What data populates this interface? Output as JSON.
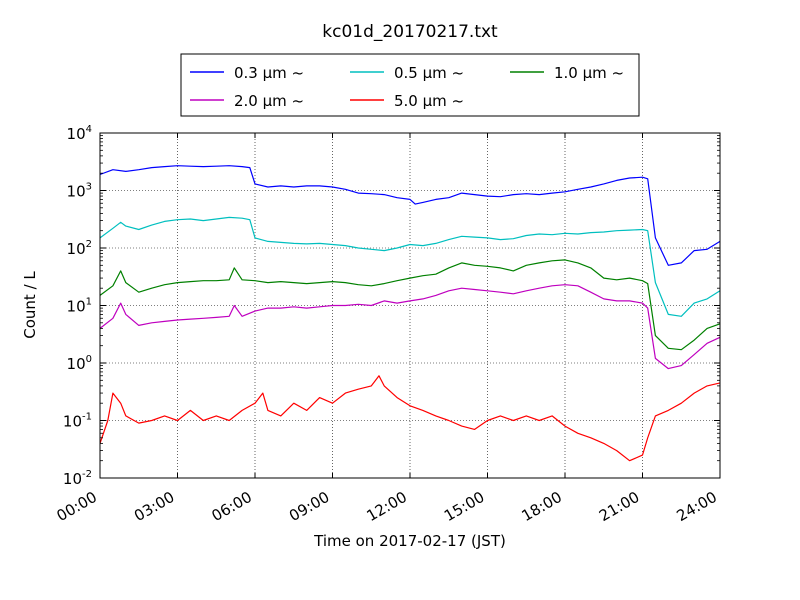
{
  "chart_data": {
    "type": "line",
    "title": "kc01d_20170217.txt",
    "xlabel": "Time on 2017-02-17 (JST)",
    "ylabel": "Count / L",
    "x_ticks": [
      "00:00",
      "03:00",
      "06:00",
      "09:00",
      "12:00",
      "15:00",
      "18:00",
      "21:00",
      "24:00"
    ],
    "y_ticks": [
      {
        "base": "10",
        "exp": "-2"
      },
      {
        "base": "10",
        "exp": "-1"
      },
      {
        "base": "10",
        "exp": "0"
      },
      {
        "base": "10",
        "exp": "1"
      },
      {
        "base": "10",
        "exp": "2"
      },
      {
        "base": "10",
        "exp": "3"
      },
      {
        "base": "10",
        "exp": "4"
      }
    ],
    "xlim_hours": [
      0,
      24
    ],
    "ylim": [
      0.01,
      10000
    ],
    "yscale": "log",
    "grid": true,
    "legend_position": "top-center (outside plot)",
    "series": [
      {
        "name": "0.3 μm ~",
        "color": "#0000ff",
        "points": [
          [
            0,
            1900
          ],
          [
            0.5,
            2300
          ],
          [
            1,
            2150
          ],
          [
            1.5,
            2300
          ],
          [
            2,
            2500
          ],
          [
            2.5,
            2600
          ],
          [
            3,
            2700
          ],
          [
            3.5,
            2650
          ],
          [
            4,
            2600
          ],
          [
            4.5,
            2650
          ],
          [
            5,
            2700
          ],
          [
            5.5,
            2600
          ],
          [
            5.8,
            2500
          ],
          [
            6.0,
            1300
          ],
          [
            6.5,
            1150
          ],
          [
            7,
            1200
          ],
          [
            7.5,
            1150
          ],
          [
            8,
            1200
          ],
          [
            8.5,
            1200
          ],
          [
            9,
            1150
          ],
          [
            9.5,
            1050
          ],
          [
            10,
            900
          ],
          [
            10.5,
            880
          ],
          [
            11,
            850
          ],
          [
            11.5,
            750
          ],
          [
            12,
            700
          ],
          [
            12.2,
            580
          ],
          [
            12.5,
            620
          ],
          [
            13,
            700
          ],
          [
            13.5,
            750
          ],
          [
            14,
            900
          ],
          [
            14.5,
            850
          ],
          [
            15,
            800
          ],
          [
            15.5,
            780
          ],
          [
            16,
            850
          ],
          [
            16.5,
            880
          ],
          [
            17,
            850
          ],
          [
            17.5,
            900
          ],
          [
            18,
            950
          ],
          [
            18.5,
            1050
          ],
          [
            19,
            1150
          ],
          [
            19.5,
            1300
          ],
          [
            20,
            1500
          ],
          [
            20.5,
            1650
          ],
          [
            21,
            1700
          ],
          [
            21.2,
            1600
          ],
          [
            21.5,
            150
          ],
          [
            22,
            50
          ],
          [
            22.5,
            55
          ],
          [
            23,
            90
          ],
          [
            23.5,
            95
          ],
          [
            24,
            130
          ]
        ]
      },
      {
        "name": "0.5 μm ~",
        "color": "#00bfbf",
        "points": [
          [
            0,
            150
          ],
          [
            0.5,
            220
          ],
          [
            0.8,
            280
          ],
          [
            1,
            240
          ],
          [
            1.5,
            210
          ],
          [
            2,
            250
          ],
          [
            2.5,
            290
          ],
          [
            3,
            310
          ],
          [
            3.5,
            320
          ],
          [
            4,
            300
          ],
          [
            4.5,
            320
          ],
          [
            5,
            340
          ],
          [
            5.5,
            330
          ],
          [
            5.8,
            310
          ],
          [
            6.0,
            150
          ],
          [
            6.5,
            130
          ],
          [
            7,
            125
          ],
          [
            7.5,
            120
          ],
          [
            8,
            118
          ],
          [
            8.5,
            120
          ],
          [
            9,
            115
          ],
          [
            9.5,
            110
          ],
          [
            10,
            100
          ],
          [
            10.5,
            95
          ],
          [
            11,
            90
          ],
          [
            11.5,
            100
          ],
          [
            12,
            115
          ],
          [
            12.5,
            110
          ],
          [
            13,
            120
          ],
          [
            13.5,
            140
          ],
          [
            14,
            160
          ],
          [
            14.5,
            155
          ],
          [
            15,
            150
          ],
          [
            15.5,
            140
          ],
          [
            16,
            145
          ],
          [
            16.5,
            165
          ],
          [
            17,
            175
          ],
          [
            17.5,
            170
          ],
          [
            18,
            180
          ],
          [
            18.5,
            175
          ],
          [
            19,
            185
          ],
          [
            19.5,
            190
          ],
          [
            20,
            200
          ],
          [
            20.5,
            205
          ],
          [
            21,
            210
          ],
          [
            21.2,
            200
          ],
          [
            21.5,
            25
          ],
          [
            22,
            7
          ],
          [
            22.5,
            6.5
          ],
          [
            23,
            11
          ],
          [
            23.5,
            13
          ],
          [
            24,
            18
          ]
        ]
      },
      {
        "name": "1.0 μm ~",
        "color": "#008000",
        "points": [
          [
            0,
            15
          ],
          [
            0.5,
            22
          ],
          [
            0.8,
            40
          ],
          [
            1,
            25
          ],
          [
            1.5,
            17
          ],
          [
            2,
            20
          ],
          [
            2.5,
            23
          ],
          [
            3,
            25
          ],
          [
            3.5,
            26
          ],
          [
            4,
            27
          ],
          [
            4.5,
            27
          ],
          [
            5,
            28
          ],
          [
            5.2,
            45
          ],
          [
            5.5,
            28
          ],
          [
            6,
            27
          ],
          [
            6.5,
            25
          ],
          [
            7,
            26
          ],
          [
            7.5,
            25
          ],
          [
            8,
            24
          ],
          [
            8.5,
            25
          ],
          [
            9,
            26
          ],
          [
            9.5,
            25
          ],
          [
            10,
            23
          ],
          [
            10.5,
            22
          ],
          [
            11,
            24
          ],
          [
            11.5,
            27
          ],
          [
            12,
            30
          ],
          [
            12.5,
            33
          ],
          [
            13,
            35
          ],
          [
            13.5,
            45
          ],
          [
            14,
            55
          ],
          [
            14.5,
            50
          ],
          [
            15,
            48
          ],
          [
            15.5,
            45
          ],
          [
            16,
            40
          ],
          [
            16.5,
            50
          ],
          [
            17,
            55
          ],
          [
            17.5,
            60
          ],
          [
            18,
            62
          ],
          [
            18.5,
            55
          ],
          [
            19,
            45
          ],
          [
            19.5,
            30
          ],
          [
            20,
            28
          ],
          [
            20.5,
            30
          ],
          [
            21,
            27
          ],
          [
            21.2,
            24
          ],
          [
            21.5,
            3
          ],
          [
            22,
            1.8
          ],
          [
            22.5,
            1.7
          ],
          [
            23,
            2.5
          ],
          [
            23.5,
            4
          ],
          [
            24,
            4.8
          ]
        ]
      },
      {
        "name": "2.0 μm ~",
        "color": "#bf00bf",
        "points": [
          [
            0,
            4
          ],
          [
            0.5,
            6
          ],
          [
            0.8,
            11
          ],
          [
            1,
            7
          ],
          [
            1.5,
            4.5
          ],
          [
            2,
            5
          ],
          [
            2.5,
            5.3
          ],
          [
            3,
            5.6
          ],
          [
            3.5,
            5.8
          ],
          [
            4,
            6
          ],
          [
            4.5,
            6.2
          ],
          [
            5,
            6.5
          ],
          [
            5.2,
            10
          ],
          [
            5.5,
            6.5
          ],
          [
            6,
            8
          ],
          [
            6.5,
            9
          ],
          [
            7,
            9
          ],
          [
            7.5,
            9.5
          ],
          [
            8,
            9
          ],
          [
            8.5,
            9.5
          ],
          [
            9,
            10
          ],
          [
            9.5,
            10
          ],
          [
            10,
            10.5
          ],
          [
            10.5,
            10
          ],
          [
            11,
            12
          ],
          [
            11.5,
            11
          ],
          [
            12,
            12
          ],
          [
            12.5,
            13
          ],
          [
            13,
            15
          ],
          [
            13.5,
            18
          ],
          [
            14,
            20
          ],
          [
            14.5,
            19
          ],
          [
            15,
            18
          ],
          [
            15.5,
            17
          ],
          [
            16,
            16
          ],
          [
            16.5,
            18
          ],
          [
            17,
            20
          ],
          [
            17.5,
            22
          ],
          [
            18,
            23
          ],
          [
            18.5,
            22
          ],
          [
            19,
            17
          ],
          [
            19.5,
            13
          ],
          [
            20,
            12
          ],
          [
            20.5,
            12
          ],
          [
            21,
            11
          ],
          [
            21.2,
            9
          ],
          [
            21.5,
            1.2
          ],
          [
            22,
            0.8
          ],
          [
            22.5,
            0.9
          ],
          [
            23,
            1.4
          ],
          [
            23.5,
            2.2
          ],
          [
            24,
            2.8
          ]
        ]
      },
      {
        "name": "5.0 μm ~",
        "color": "#ff0000",
        "points": [
          [
            0,
            0.04
          ],
          [
            0.3,
            0.1
          ],
          [
            0.5,
            0.3
          ],
          [
            0.8,
            0.2
          ],
          [
            1,
            0.12
          ],
          [
            1.5,
            0.09
          ],
          [
            2,
            0.1
          ],
          [
            2.5,
            0.12
          ],
          [
            3,
            0.1
          ],
          [
            3.5,
            0.15
          ],
          [
            4,
            0.1
          ],
          [
            4.5,
            0.12
          ],
          [
            5,
            0.1
          ],
          [
            5.5,
            0.15
          ],
          [
            6,
            0.2
          ],
          [
            6.3,
            0.3
          ],
          [
            6.5,
            0.15
          ],
          [
            7,
            0.12
          ],
          [
            7.5,
            0.2
          ],
          [
            8,
            0.15
          ],
          [
            8.5,
            0.25
          ],
          [
            9,
            0.2
          ],
          [
            9.5,
            0.3
          ],
          [
            10,
            0.35
          ],
          [
            10.5,
            0.4
          ],
          [
            10.8,
            0.6
          ],
          [
            11,
            0.4
          ],
          [
            11.5,
            0.25
          ],
          [
            12,
            0.18
          ],
          [
            12.5,
            0.15
          ],
          [
            13,
            0.12
          ],
          [
            13.5,
            0.1
          ],
          [
            14,
            0.08
          ],
          [
            14.5,
            0.07
          ],
          [
            15,
            0.1
          ],
          [
            15.5,
            0.12
          ],
          [
            16,
            0.1
          ],
          [
            16.5,
            0.12
          ],
          [
            17,
            0.1
          ],
          [
            17.5,
            0.12
          ],
          [
            18,
            0.08
          ],
          [
            18.5,
            0.06
          ],
          [
            19,
            0.05
          ],
          [
            19.5,
            0.04
          ],
          [
            20,
            0.03
          ],
          [
            20.5,
            0.02
          ],
          [
            21,
            0.025
          ],
          [
            21.2,
            0.05
          ],
          [
            21.5,
            0.12
          ],
          [
            22,
            0.15
          ],
          [
            22.5,
            0.2
          ],
          [
            23,
            0.3
          ],
          [
            23.5,
            0.4
          ],
          [
            24,
            0.45
          ]
        ]
      }
    ]
  }
}
